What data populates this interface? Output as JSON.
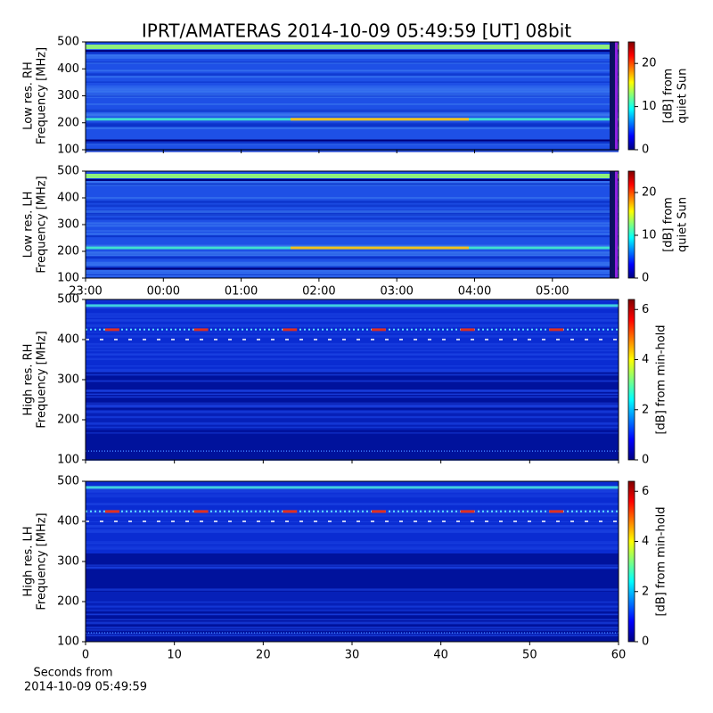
{
  "title": "IPRT/AMATERAS 2014-10-09 05:49:59 [UT]   08bit",
  "x_label": [
    "Seconds from",
    "2014-10-09 05:49:59"
  ],
  "chart_data": [
    {
      "type": "heatmap",
      "ylabel": [
        "Low res. RH",
        "Frequency [MHz]"
      ],
      "ylim": [
        100,
        500
      ],
      "yticks": [
        100,
        200,
        300,
        400,
        500
      ],
      "xlim": [
        0,
        6.85
      ],
      "colormap": "jet",
      "clim": [
        0,
        25
      ],
      "cticks": [
        0,
        10,
        20
      ],
      "colorbar_label": [
        "[dB] from",
        "quiet Sun"
      ]
    },
    {
      "type": "heatmap",
      "ylabel": [
        "Low res. LH",
        "Frequency [MHz]"
      ],
      "ylim": [
        100,
        500
      ],
      "yticks": [
        100,
        200,
        300,
        400,
        500
      ],
      "xlim": [
        0,
        6.85
      ],
      "xticks": [
        {
          "value": 0,
          "label": "23:00"
        },
        {
          "value": 1,
          "label": "00:00"
        },
        {
          "value": 2,
          "label": "01:00"
        },
        {
          "value": 3,
          "label": "02:00"
        },
        {
          "value": 4,
          "label": "03:00"
        },
        {
          "value": 5,
          "label": "04:00"
        },
        {
          "value": 6,
          "label": "05:00"
        }
      ],
      "colormap": "jet",
      "clim": [
        0,
        25
      ],
      "cticks": [
        0,
        10,
        20
      ],
      "colorbar_label": [
        "[dB] from",
        "quiet Sun"
      ]
    },
    {
      "type": "heatmap",
      "ylabel": [
        "High res. RH",
        "Frequency [MHz]"
      ],
      "ylim": [
        100,
        500
      ],
      "yticks": [
        100,
        200,
        300,
        400,
        500
      ],
      "xlim": [
        0,
        60
      ],
      "colormap": "jet",
      "clim": [
        0,
        6.4
      ],
      "cticks": [
        0,
        2,
        4,
        6
      ],
      "colorbar_label": [
        "[dB] from min-hold"
      ]
    },
    {
      "type": "heatmap",
      "ylabel": [
        "High res. LH",
        "Frequency [MHz]"
      ],
      "ylim": [
        100,
        500
      ],
      "yticks": [
        100,
        200,
        300,
        400,
        500
      ],
      "xlim": [
        0,
        60
      ],
      "xticks": [
        0,
        10,
        20,
        30,
        40,
        50,
        60
      ],
      "colormap": "jet",
      "clim": [
        0,
        6.4
      ],
      "cticks": [
        0,
        2,
        4,
        6
      ],
      "colorbar_label": [
        "[dB] from min-hold"
      ]
    }
  ]
}
